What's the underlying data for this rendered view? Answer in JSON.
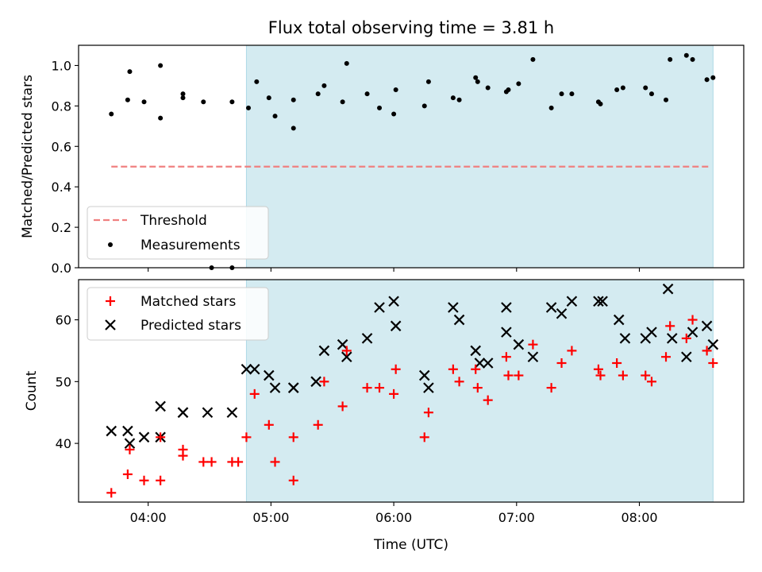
{
  "title": "Flux total observing time = 3.81 h",
  "shade_color": "#d4ebf1",
  "chart_data": [
    {
      "type": "scatter",
      "ylabel": "Matched/Predicted stars",
      "xlim": [
        "03:26",
        "08:51"
      ],
      "ylim": [
        0,
        1.1
      ],
      "yticks": [
        "0.0",
        "0.2",
        "0.4",
        "0.6",
        "0.8",
        "1.0"
      ],
      "shaded_interval": [
        "04:48",
        "08:36"
      ],
      "legend": {
        "position": "lower-left",
        "entries": [
          "Threshold",
          "Measurements"
        ]
      },
      "threshold": {
        "name": "Threshold",
        "y": 0.5,
        "x_range": [
          "03:42",
          "08:35"
        ],
        "color": "#f08080"
      },
      "measurements": {
        "name": "Measurements",
        "color": "#000000",
        "points": [
          [
            "03:42",
            0.76
          ],
          [
            "03:50",
            0.83
          ],
          [
            "03:51",
            0.97
          ],
          [
            "03:58",
            0.82
          ],
          [
            "04:06",
            1.0
          ],
          [
            "04:06",
            0.74
          ],
          [
            "04:17",
            0.86
          ],
          [
            "04:17",
            0.84
          ],
          [
            "04:27",
            0.82
          ],
          [
            "04:31",
            0.0
          ],
          [
            "04:41",
            0.82
          ],
          [
            "04:41",
            0.0
          ],
          [
            "04:49",
            0.79
          ],
          [
            "04:53",
            0.92
          ],
          [
            "04:59",
            0.84
          ],
          [
            "05:02",
            0.75
          ],
          [
            "05:11",
            0.83
          ],
          [
            "05:11",
            0.69
          ],
          [
            "05:23",
            0.86
          ],
          [
            "05:26",
            0.9
          ],
          [
            "05:35",
            0.82
          ],
          [
            "05:37",
            1.01
          ],
          [
            "05:47",
            0.86
          ],
          [
            "05:53",
            0.79
          ],
          [
            "06:00",
            0.76
          ],
          [
            "06:01",
            0.88
          ],
          [
            "06:15",
            0.8
          ],
          [
            "06:17",
            0.92
          ],
          [
            "06:29",
            0.84
          ],
          [
            "06:32",
            0.83
          ],
          [
            "06:40",
            0.94
          ],
          [
            "06:41",
            0.92
          ],
          [
            "06:46",
            0.89
          ],
          [
            "06:55",
            0.87
          ],
          [
            "06:56",
            0.88
          ],
          [
            "07:01",
            0.91
          ],
          [
            "07:08",
            1.03
          ],
          [
            "07:17",
            0.79
          ],
          [
            "07:22",
            0.86
          ],
          [
            "07:27",
            0.86
          ],
          [
            "07:40",
            0.82
          ],
          [
            "07:41",
            0.81
          ],
          [
            "07:49",
            0.88
          ],
          [
            "07:52",
            0.89
          ],
          [
            "08:03",
            0.89
          ],
          [
            "08:06",
            0.86
          ],
          [
            "08:13",
            0.83
          ],
          [
            "08:15",
            1.03
          ],
          [
            "08:23",
            1.05
          ],
          [
            "08:26",
            1.03
          ],
          [
            "08:33",
            0.93
          ],
          [
            "08:36",
            0.94
          ]
        ]
      }
    },
    {
      "type": "scatter",
      "xlabel": "Time (UTC)",
      "ylabel": "Count",
      "xlim": [
        "03:26",
        "08:51"
      ],
      "ylim": [
        30.5,
        66.5
      ],
      "xticks": [
        "04:00",
        "05:00",
        "06:00",
        "07:00",
        "08:00"
      ],
      "yticks": [
        "40",
        "50",
        "60"
      ],
      "shaded_interval": [
        "04:48",
        "08:36"
      ],
      "legend": {
        "position": "upper-left",
        "entries": [
          "Matched stars",
          "Predicted stars"
        ]
      },
      "series": [
        {
          "name": "Matched stars",
          "color": "#ff0000",
          "marker": "plus",
          "points": [
            [
              "03:42",
              32
            ],
            [
              "03:50",
              35
            ],
            [
              "03:51",
              39
            ],
            [
              "03:58",
              34
            ],
            [
              "04:06",
              34
            ],
            [
              "04:06",
              41
            ],
            [
              "04:17",
              39
            ],
            [
              "04:17",
              38
            ],
            [
              "04:27",
              37
            ],
            [
              "04:31",
              37
            ],
            [
              "04:41",
              37
            ],
            [
              "04:44",
              37
            ],
            [
              "04:48",
              41
            ],
            [
              "04:52",
              48
            ],
            [
              "04:59",
              43
            ],
            [
              "05:02",
              37
            ],
            [
              "05:11",
              41
            ],
            [
              "05:11",
              34
            ],
            [
              "05:23",
              43
            ],
            [
              "05:26",
              50
            ],
            [
              "05:35",
              46
            ],
            [
              "05:37",
              55
            ],
            [
              "05:47",
              49
            ],
            [
              "05:53",
              49
            ],
            [
              "06:00",
              48
            ],
            [
              "06:01",
              52
            ],
            [
              "06:15",
              41
            ],
            [
              "06:17",
              45
            ],
            [
              "06:29",
              52
            ],
            [
              "06:32",
              50
            ],
            [
              "06:40",
              52
            ],
            [
              "06:41",
              49
            ],
            [
              "06:46",
              47
            ],
            [
              "06:55",
              54
            ],
            [
              "06:56",
              51
            ],
            [
              "07:01",
              51
            ],
            [
              "07:08",
              56
            ],
            [
              "07:17",
              49
            ],
            [
              "07:22",
              53
            ],
            [
              "07:27",
              55
            ],
            [
              "07:40",
              52
            ],
            [
              "07:41",
              51
            ],
            [
              "07:49",
              53
            ],
            [
              "07:52",
              51
            ],
            [
              "08:03",
              51
            ],
            [
              "08:06",
              50
            ],
            [
              "08:13",
              54
            ],
            [
              "08:15",
              59
            ],
            [
              "08:23",
              57
            ],
            [
              "08:26",
              60
            ],
            [
              "08:33",
              55
            ],
            [
              "08:36",
              53
            ]
          ]
        },
        {
          "name": "Predicted stars",
          "color": "#000000",
          "marker": "x",
          "points": [
            [
              "03:42",
              42
            ],
            [
              "03:50",
              42
            ],
            [
              "03:51",
              40
            ],
            [
              "03:58",
              41
            ],
            [
              "04:06",
              46
            ],
            [
              "04:06",
              41
            ],
            [
              "04:17",
              45
            ],
            [
              "04:17",
              45
            ],
            [
              "04:29",
              45
            ],
            [
              "04:41",
              45
            ],
            [
              "04:48",
              52
            ],
            [
              "04:52",
              52
            ],
            [
              "04:59",
              51
            ],
            [
              "05:02",
              49
            ],
            [
              "05:11",
              49
            ],
            [
              "05:11",
              49
            ],
            [
              "05:22",
              50
            ],
            [
              "05:26",
              55
            ],
            [
              "05:35",
              56
            ],
            [
              "05:37",
              54
            ],
            [
              "05:47",
              57
            ],
            [
              "05:53",
              62
            ],
            [
              "06:00",
              63
            ],
            [
              "06:01",
              59
            ],
            [
              "06:15",
              51
            ],
            [
              "06:17",
              49
            ],
            [
              "06:29",
              62
            ],
            [
              "06:32",
              60
            ],
            [
              "06:40",
              55
            ],
            [
              "06:42",
              53
            ],
            [
              "06:46",
              53
            ],
            [
              "06:55",
              62
            ],
            [
              "06:55",
              58
            ],
            [
              "07:01",
              56
            ],
            [
              "07:08",
              54
            ],
            [
              "07:17",
              62
            ],
            [
              "07:22",
              61
            ],
            [
              "07:27",
              63
            ],
            [
              "07:40",
              63
            ],
            [
              "07:42",
              63
            ],
            [
              "07:50",
              60
            ],
            [
              "07:53",
              57
            ],
            [
              "08:03",
              57
            ],
            [
              "08:06",
              58
            ],
            [
              "08:14",
              65
            ],
            [
              "08:16",
              57
            ],
            [
              "08:23",
              54
            ],
            [
              "08:26",
              58
            ],
            [
              "08:33",
              59
            ],
            [
              "08:36",
              56
            ]
          ]
        }
      ]
    }
  ]
}
